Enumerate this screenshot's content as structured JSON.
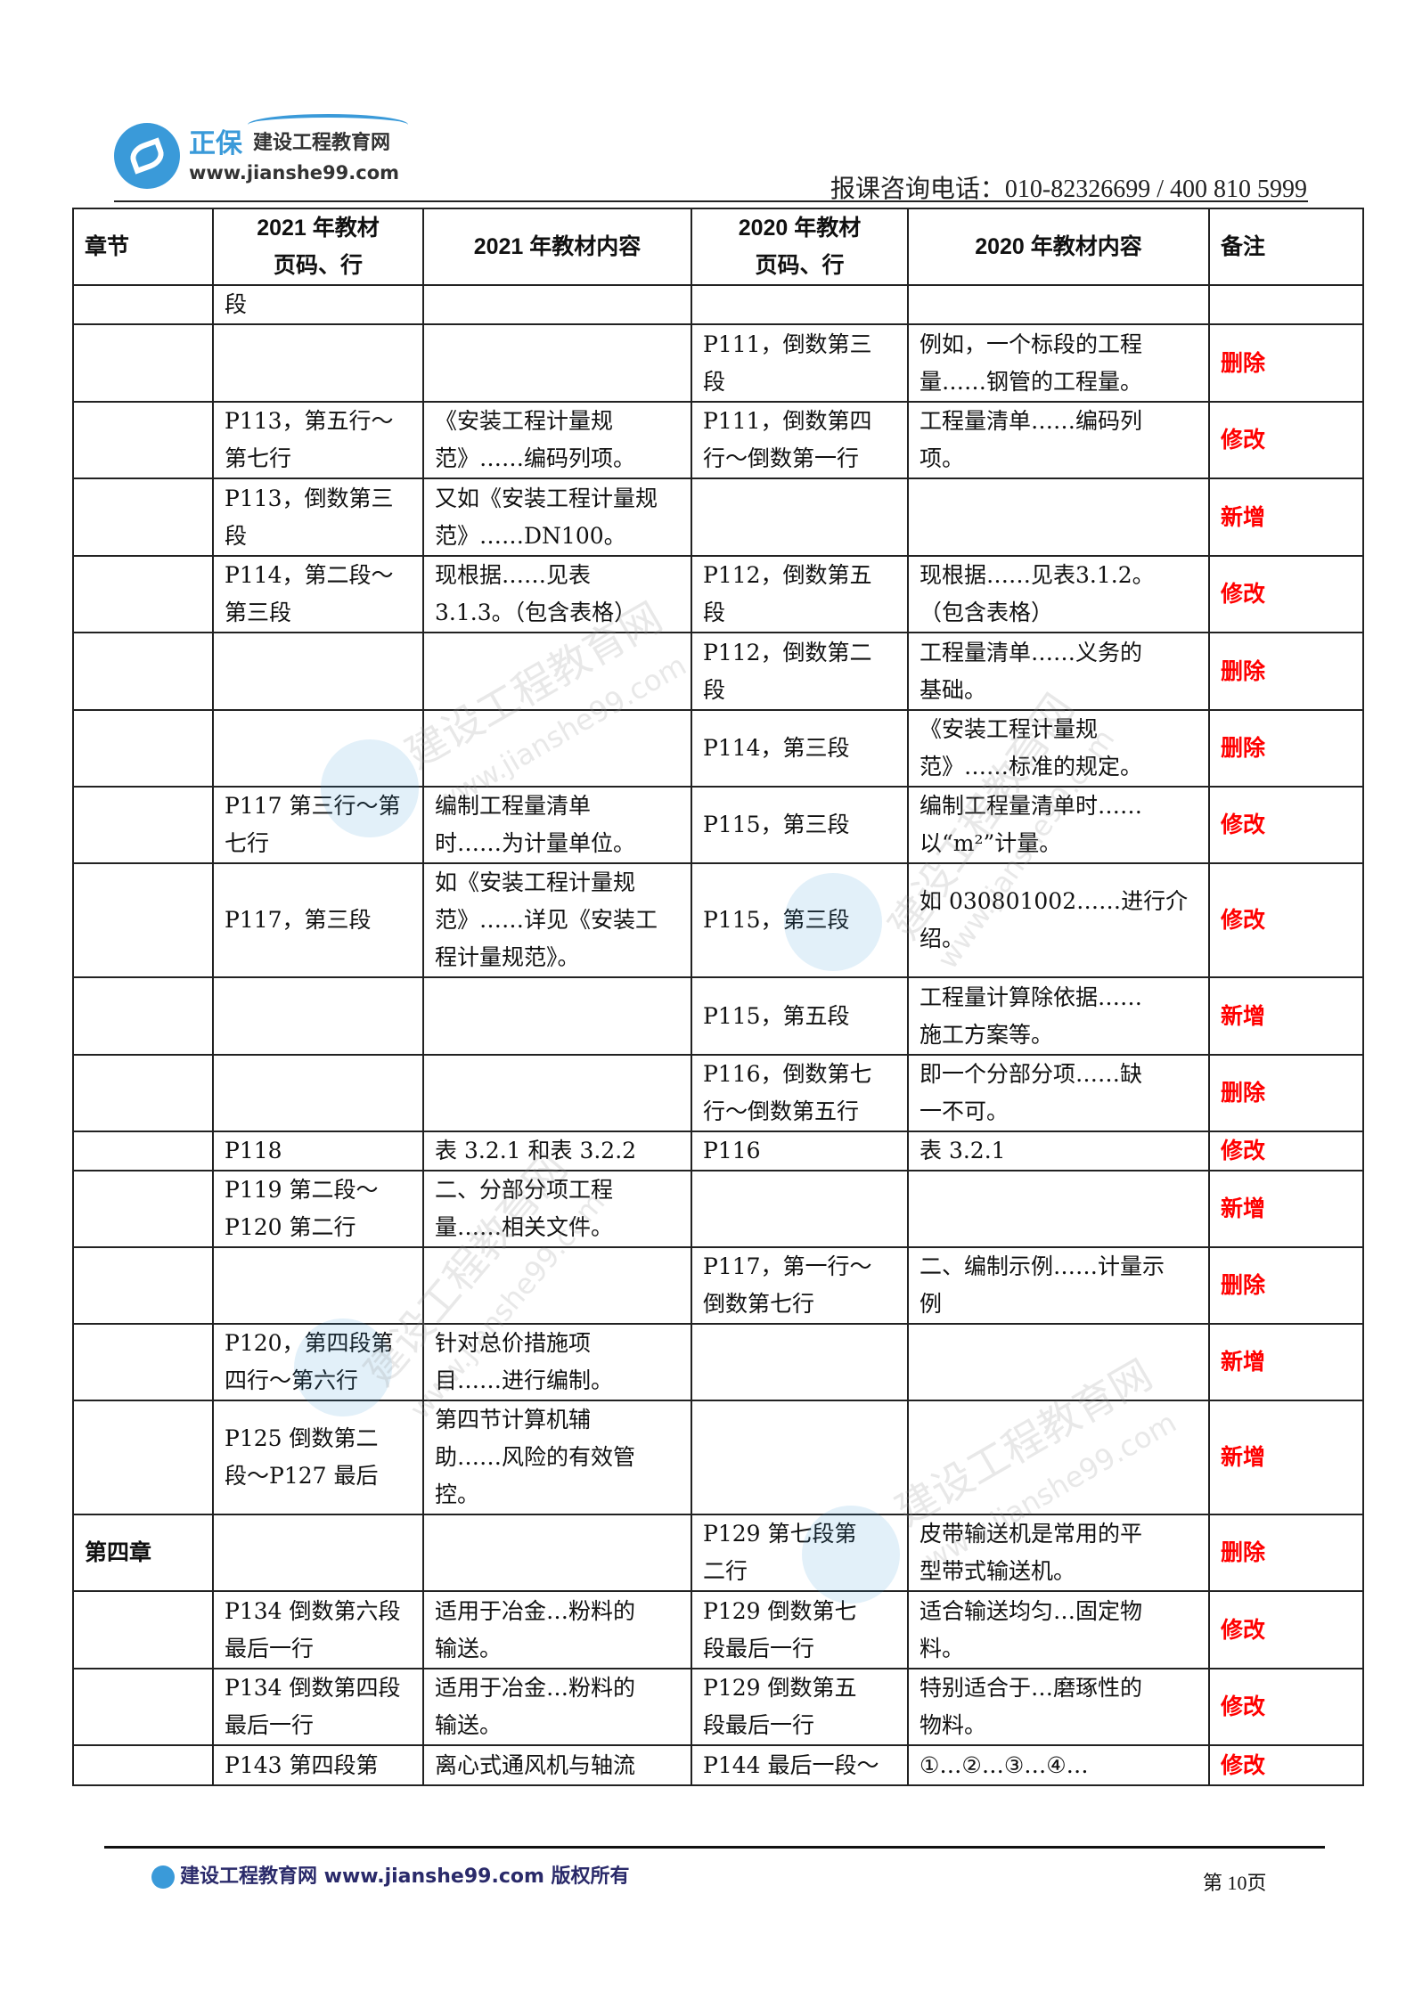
{
  "header": {
    "logo_brand": "正保",
    "logo_name": "建设工程教育网",
    "logo_url": "www.jianshe99.com",
    "phone": "报课咨询电话：010-82326699 / 400 810 5999"
  },
  "watermark": {
    "text": "建设工程教育网",
    "url": "www.jianshe99.com"
  },
  "table": {
    "columns": [
      "章节",
      "2021 年教材\n页码、行",
      "2021 年教材内容",
      "2020 年教材\n页码、行",
      "2020 年教材内容",
      "备注"
    ],
    "rows": [
      {
        "cells": [
          "",
          "段",
          "",
          "",
          "",
          ""
        ]
      },
      {
        "cells": [
          "",
          "",
          "",
          "P111，倒数第三\n段",
          "例如，一个标段的工程\n量……钢管的工程量。",
          "删除"
        ]
      },
      {
        "cells": [
          "",
          "P113，第五行～\n第七行",
          "《安装工程计量规\n范》……编码列项。",
          "P111，倒数第四\n行～倒数第一行",
          "工程量清单……编码列\n项。",
          "修改"
        ]
      },
      {
        "cells": [
          "",
          "P113，倒数第三\n段",
          "又如《安装工程计量规\n范》……DN100。",
          "",
          "",
          "新增"
        ]
      },
      {
        "cells": [
          "",
          "P114，第二段～\n第三段",
          "现根据……见表\n3.1.3。（包含表格）",
          "P112，倒数第五\n段",
          "现根据……见表3.1.2。\n（包含表格）",
          "修改"
        ]
      },
      {
        "cells": [
          "",
          "",
          "",
          "P112，倒数第二\n段",
          "工程量清单……义务的\n基础。",
          "删除"
        ]
      },
      {
        "cells": [
          "",
          "",
          "",
          "P114，第三段",
          "《安装工程计量规\n范》……标准的规定。",
          "删除"
        ]
      },
      {
        "cells": [
          "",
          "P117 第三行～第\n七行",
          "编制工程量清单\n时……为计量单位。",
          "P115，第三段",
          "编制工程量清单时……\n以“m²”计量。",
          "修改"
        ]
      },
      {
        "cells": [
          "",
          "P117，第三段",
          "如《安装工程计量规\n范》……详见《安装工\n程计量规范》。",
          "P115，第三段",
          "如 030801002……进行介\n绍。",
          "修改"
        ]
      },
      {
        "cells": [
          "",
          "",
          "",
          "P115，第五段",
          "工程量计算除依据……\n施工方案等。",
          "新增"
        ]
      },
      {
        "cells": [
          "",
          "",
          "",
          "P116，倒数第七\n行～倒数第五行",
          "即一个分部分项……缺\n一不可。",
          "删除"
        ]
      },
      {
        "cells": [
          "",
          "P118",
          "表 3.2.1 和表 3.2.2",
          "P116",
          "表 3.2.1",
          "修改"
        ]
      },
      {
        "cells": [
          "",
          "P119 第二段～\nP120 第二行",
          "二、分部分项工程\n量……相关文件。",
          "",
          "",
          "新增"
        ]
      },
      {
        "cells": [
          "",
          "",
          "",
          "P117，第一行～\n倒数第七行",
          "二、编制示例……计量示\n例",
          "删除"
        ]
      },
      {
        "cells": [
          "",
          "P120，第四段第\n四行～第六行",
          "针对总价措施项\n目……进行编制。",
          "",
          "",
          "新增"
        ]
      },
      {
        "cells": [
          "",
          "P125 倒数第二\n段～P127 最后",
          "第四节计算机辅\n助……风险的有效管\n控。",
          "",
          "",
          "新增"
        ]
      },
      {
        "cells": [
          "第四章",
          "",
          "",
          "P129 第七段第\n二行",
          "皮带输送机是常用的平\n型带式输送机。",
          "删除"
        ]
      },
      {
        "cells": [
          "",
          "P134 倒数第六段\n最后一行",
          "适用于冶金…粉料的\n输送。",
          "P129 倒数第七\n段最后一行",
          "适合输送均匀…固定物\n料。",
          "修改"
        ]
      },
      {
        "cells": [
          "",
          "P134 倒数第四段\n最后一行",
          "适用于冶金…粉料的\n输送。",
          "P129 倒数第五\n段最后一行",
          "特别适合于…磨琢性的\n物料。",
          "修改"
        ]
      },
      {
        "cells": [
          "",
          "P143 第四段第",
          "离心式通风机与轴流",
          "P144 最后一段～",
          "①…②…③…④…",
          "修改"
        ]
      }
    ]
  },
  "footer": {
    "text": "建设工程教育网 www.jianshe99.com 版权所有",
    "page": "第 10页"
  },
  "colors": {
    "note": "#ff0000",
    "brand": "#3a9ad9"
  }
}
